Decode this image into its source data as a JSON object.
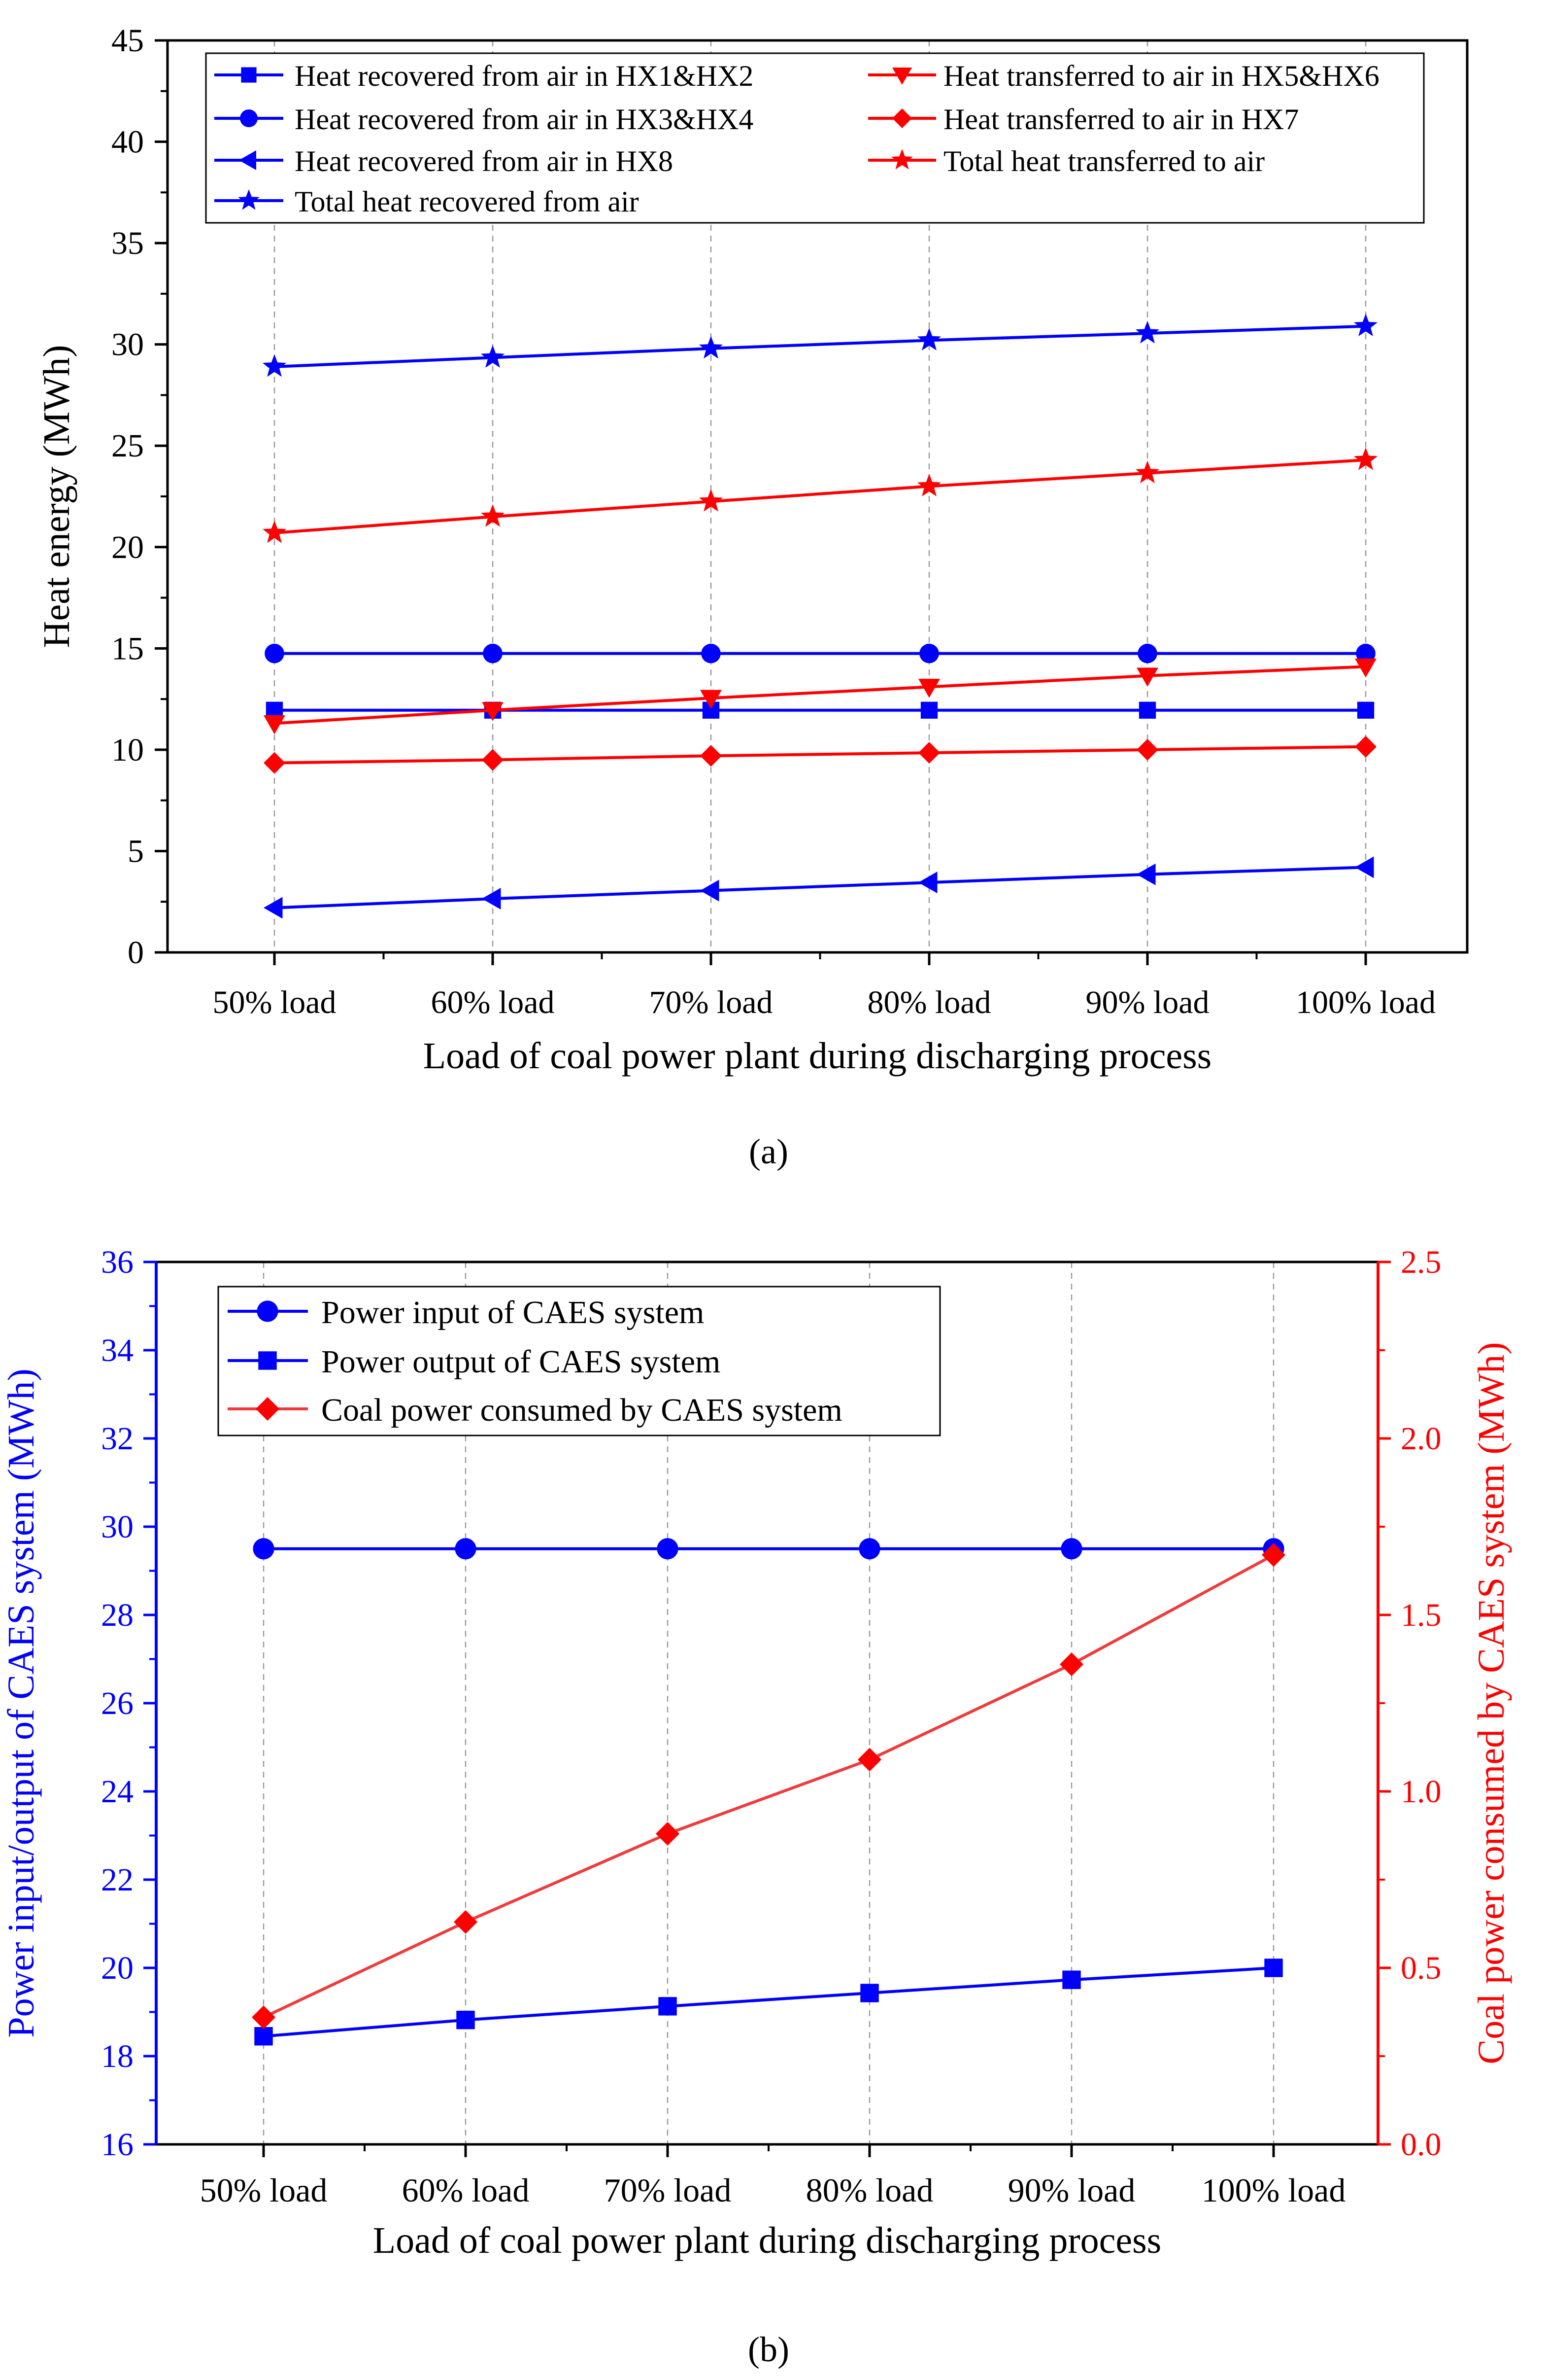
{
  "chart_data": [
    {
      "type": "line",
      "panel_label": "(a)",
      "title": "",
      "xlabel": "Load of coal power plant during discharging process",
      "ylabel": "Heat energy (MWh)",
      "categories": [
        "50% load",
        "60% load",
        "70% load",
        "80% load",
        "90% load",
        "100% load"
      ],
      "ylim": [
        0,
        45
      ],
      "yticks": [
        "0",
        "5",
        "10",
        "15",
        "20",
        "25",
        "30",
        "35",
        "40",
        "45"
      ],
      "grid": "vertical dashed",
      "legend_position": "top",
      "series": [
        {
          "name": "Heat recovered from air in HX1&HX2",
          "color": "#0000ff",
          "marker": "square",
          "values": [
            11.95,
            11.95,
            11.95,
            11.95,
            11.95,
            11.95
          ]
        },
        {
          "name": "Heat recovered from air in HX3&HX4",
          "color": "#0000ff",
          "marker": "circle",
          "values": [
            14.75,
            14.75,
            14.75,
            14.75,
            14.75,
            14.75
          ]
        },
        {
          "name": "Heat recovered from air in HX8",
          "color": "#0000ff",
          "marker": "triangle-left",
          "values": [
            2.2,
            2.65,
            3.05,
            3.45,
            3.85,
            4.2
          ]
        },
        {
          "name": "Total heat recovered from air",
          "color": "#0000ff",
          "marker": "star",
          "values": [
            28.9,
            29.35,
            29.8,
            30.2,
            30.55,
            30.9
          ]
        },
        {
          "name": "Heat transferred to air in HX5&HX6",
          "color": "#ff0000",
          "marker": "triangle-down",
          "values": [
            11.3,
            11.95,
            12.55,
            13.1,
            13.65,
            14.1
          ]
        },
        {
          "name": "Heat transferred to air in HX7",
          "color": "#ff0000",
          "marker": "diamond",
          "values": [
            9.35,
            9.5,
            9.7,
            9.85,
            10.0,
            10.15
          ]
        },
        {
          "name": "Total heat transferred to air",
          "color": "#ff0000",
          "marker": "star",
          "values": [
            20.7,
            21.5,
            22.25,
            23.0,
            23.65,
            24.3
          ]
        }
      ]
    },
    {
      "type": "line",
      "panel_label": "(b)",
      "title": "",
      "xlabel": "Load of coal power plant during discharging process",
      "ylabel": "Power input/output of CAES system (MWh)",
      "y2label": "Coal power consumed by CAES system (MWh)",
      "categories": [
        "50% load",
        "60% load",
        "70% load",
        "80% load",
        "90% load",
        "100% load"
      ],
      "ylim": [
        16,
        36
      ],
      "yticks": [
        "16",
        "18",
        "20",
        "22",
        "24",
        "26",
        "28",
        "30",
        "32",
        "34",
        "36"
      ],
      "y2lim": [
        0,
        2.5
      ],
      "y2ticks": [
        "0.0",
        "0.5",
        "1.0",
        "1.5",
        "2.0",
        "2.5"
      ],
      "grid": "vertical dashed",
      "legend_position": "top-left",
      "series": [
        {
          "name": "Power input of CAES system",
          "axis": "left",
          "color": "#0000ff",
          "marker": "circle",
          "values": [
            29.5,
            29.5,
            29.5,
            29.5,
            29.5,
            29.5
          ]
        },
        {
          "name": "Power output of CAES system",
          "axis": "left",
          "color": "#0000ff",
          "marker": "square",
          "values": [
            18.45,
            18.82,
            19.13,
            19.43,
            19.73,
            20.0
          ]
        },
        {
          "name": "Coal power consumed by CAES system",
          "axis": "right",
          "color": "#ff0000",
          "line_color": "#ef3b3b",
          "marker": "diamond",
          "values": [
            0.36,
            0.63,
            0.88,
            1.09,
            1.36,
            1.67
          ]
        }
      ]
    }
  ]
}
